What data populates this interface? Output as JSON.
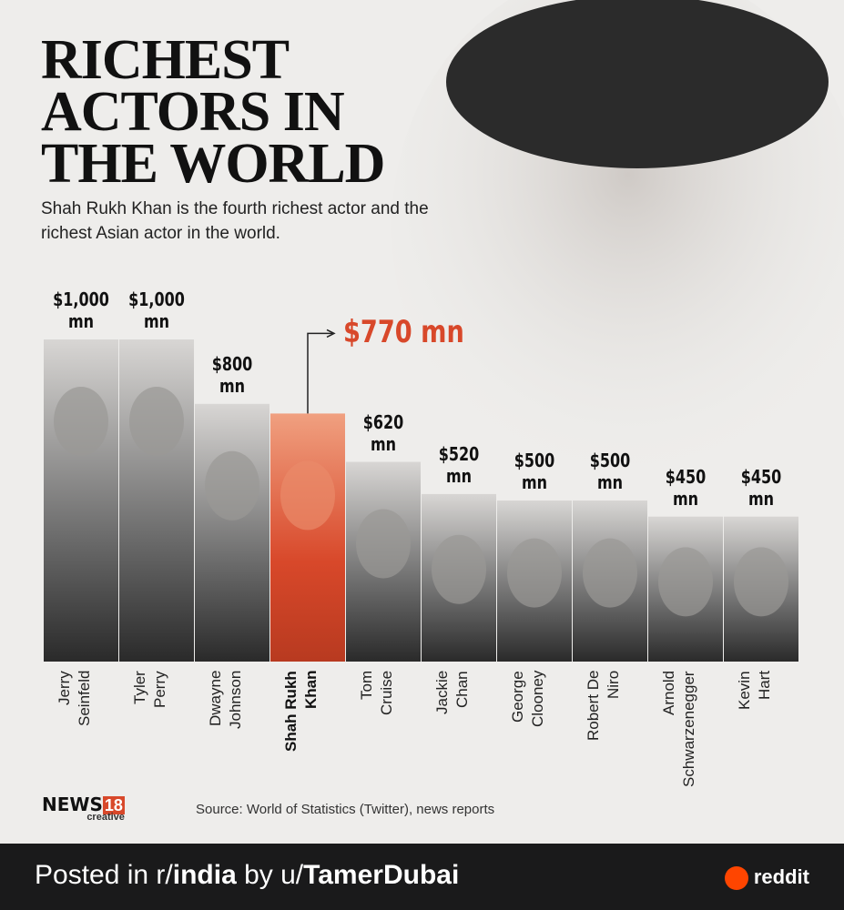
{
  "chart_data": {
    "type": "bar",
    "title": "RICHEST ACTORS IN THE WORLD",
    "subtitle": "Shah Rukh Khan is the fourth richest actor and the richest Asian actor in the world.",
    "categories": [
      "Jerry\nSeinfeld",
      "Tyler\nPerry",
      "Dwayne\nJohnson",
      "Shah Rukh\nKhan",
      "Tom\nCruise",
      "Jackie\nChan",
      "George\nClooney",
      "Robert De\nNiro",
      "Arnold\nSchwarzenegger",
      "Kevin\nHart"
    ],
    "values": [
      1000,
      1000,
      800,
      770,
      620,
      520,
      500,
      500,
      450,
      450
    ],
    "value_labels": [
      "$1,000 mn",
      "$1,000 mn",
      "$800 mn",
      "$770 mn",
      "$620 mn",
      "$520 mn",
      "$500 mn",
      "$500 mn",
      "$450 mn",
      "$450 mn"
    ],
    "color": "#6e6e6e",
    "highlight_index": 3,
    "highlight_color": "#d8482a",
    "source": "Source: World of Statistics (Twitter), news reports"
  },
  "logo": {
    "name": "NEWS",
    "number": "18",
    "sub": "creative"
  },
  "footer": {
    "prefix": "Posted in r/",
    "subreddit": "india",
    "middle": " by u/",
    "user": "TamerDubai",
    "brand": "reddit"
  }
}
